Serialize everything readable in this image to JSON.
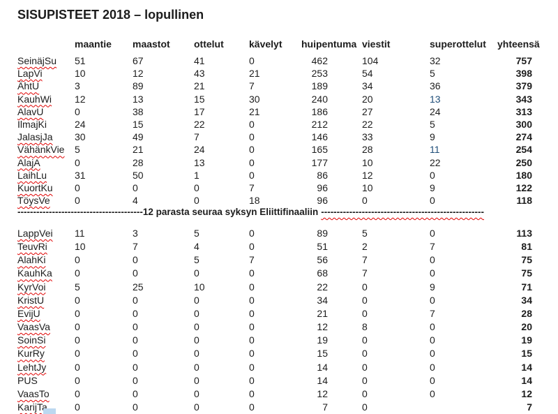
{
  "title": "SISUPISTEET 2018 – lopullinen",
  "columns": [
    "maantie",
    "maastot",
    "ottelut",
    "kävelyt",
    "huipentuma",
    "viestit",
    "superottelut",
    "yhteensä"
  ],
  "separator": {
    "left_dashes": "----------------------------------------",
    "label": "12 parasta seuraa syksyn Eliittifinaaliin",
    "right_dashes": "----------------------------------------------------"
  },
  "colors": {
    "spellcheck_red": "#e00000",
    "special_blue": "#1f4e79",
    "selection_blue": "#bcd8f0",
    "text": "#1c1c1c"
  },
  "sections": {
    "top": [
      {
        "name": "SeinäjSu",
        "misspelled": true,
        "maantie": "51",
        "maastot": "67",
        "ottelut": "41",
        "kävelyt": "0",
        "huipentuma": "462",
        "viestit": "104",
        "superottelut": "32",
        "yhteensä": "757"
      },
      {
        "name": "LapVi",
        "misspelled": true,
        "maantie": "10",
        "maastot": "12",
        "ottelut": "43",
        "kävelyt": "21",
        "huipentuma": "253",
        "viestit": "54",
        "superottelut": "5",
        "yhteensä": "398"
      },
      {
        "name": "ÄhtU",
        "misspelled": true,
        "maantie": "3",
        "maastot": "89",
        "ottelut": "21",
        "kävelyt": "7",
        "huipentuma": "189",
        "viestit": "34",
        "superottelut": "36",
        "yhteensä": "379"
      },
      {
        "name": "KauhWi",
        "misspelled": true,
        "maantie": "12",
        "maastot": "13",
        "ottelut": "15",
        "kävelyt": "30",
        "huipentuma": "240",
        "viestit": "20",
        "superottelut": "13",
        "superottelut_blue": true,
        "yhteensä": "343"
      },
      {
        "name": "AlavU",
        "misspelled": true,
        "maantie": "0",
        "maastot": "38",
        "ottelut": "17",
        "kävelyt": "21",
        "huipentuma": "186",
        "viestit": "27",
        "superottelut": "24",
        "yhteensä": "313"
      },
      {
        "name": "IlmajKi",
        "misspelled": false,
        "maantie": "24",
        "maastot": "15",
        "ottelut": "22",
        "kävelyt": "0",
        "huipentuma": "212",
        "viestit": "22",
        "superottelut": "5",
        "yhteensä": "300"
      },
      {
        "name": "JalasjJa",
        "misspelled": true,
        "maantie": "30",
        "maastot": "49",
        "ottelut": "7",
        "kävelyt": "0",
        "huipentuma": "146",
        "viestit": "33",
        "superottelut": "9",
        "yhteensä": "274"
      },
      {
        "name": "VähänkVie",
        "misspelled": true,
        "maantie": "5",
        "maastot": "21",
        "ottelut": "24",
        "kävelyt": "0",
        "huipentuma": "165",
        "viestit": "28",
        "superottelut": "11",
        "superottelut_blue": true,
        "yhteensä": "254"
      },
      {
        "name": "AlajA",
        "misspelled": true,
        "maantie": "0",
        "maastot": "28",
        "ottelut": "13",
        "kävelyt": "0",
        "huipentuma": "177",
        "viestit": "10",
        "superottelut": "22",
        "yhteensä": "250"
      },
      {
        "name": "LaihLu",
        "misspelled": true,
        "maantie": "31",
        "maastot": "50",
        "ottelut": "1",
        "kävelyt": "0",
        "huipentuma": "86",
        "viestit": "12",
        "superottelut": "0",
        "yhteensä": "180"
      },
      {
        "name": "KuortKu",
        "misspelled": true,
        "maantie": "0",
        "maastot": "0",
        "ottelut": "0",
        "kävelyt": "7",
        "huipentuma": "96",
        "viestit": "10",
        "superottelut": "9",
        "yhteensä": "122"
      },
      {
        "name": "TöysVe",
        "misspelled": true,
        "maantie": "0",
        "maastot": "4",
        "ottelut": "0",
        "kävelyt": "18",
        "huipentuma": "96",
        "viestit": "0",
        "superottelut": "0",
        "yhteensä": "118"
      }
    ],
    "bottom": [
      {
        "name": "LappVei",
        "misspelled": true,
        "maantie": "11",
        "maastot": "3",
        "ottelut": "5",
        "kävelyt": "0",
        "huipentuma": "89",
        "viestit": "5",
        "superottelut": "0",
        "yhteensä": "113"
      },
      {
        "name": "TeuvRi",
        "misspelled": true,
        "maantie": "10",
        "maastot": "7",
        "ottelut": "4",
        "kävelyt": "0",
        "huipentuma": "51",
        "viestit": "2",
        "superottelut": "7",
        "yhteensä": "81"
      },
      {
        "name": "AlahKi",
        "misspelled": true,
        "maantie": "0",
        "maastot": "0",
        "ottelut": "5",
        "kävelyt": "7",
        "huipentuma": "56",
        "viestit": "7",
        "superottelut": "0",
        "yhteensä": "75"
      },
      {
        "name": "KauhKa",
        "misspelled": true,
        "maantie": "0",
        "maastot": "0",
        "ottelut": "0",
        "kävelyt": "0",
        "huipentuma": "68",
        "viestit": "7",
        "superottelut": "0",
        "yhteensä": "75"
      },
      {
        "name": "KyrVoi",
        "misspelled": true,
        "maantie": "5",
        "maastot": "25",
        "ottelut": "10",
        "kävelyt": "0",
        "huipentuma": "22",
        "viestit": "0",
        "superottelut": "9",
        "yhteensä": "71"
      },
      {
        "name": "KristU",
        "misspelled": true,
        "maantie": "0",
        "maastot": "0",
        "ottelut": "0",
        "kävelyt": "0",
        "huipentuma": "34",
        "viestit": "0",
        "superottelut": "0",
        "yhteensä": "34"
      },
      {
        "name": "EvijU",
        "misspelled": true,
        "maantie": "0",
        "maastot": "0",
        "ottelut": "0",
        "kävelyt": "0",
        "huipentuma": "21",
        "viestit": "0",
        "superottelut": "7",
        "yhteensä": "28"
      },
      {
        "name": "VaasVa",
        "misspelled": true,
        "maantie": "0",
        "maastot": "0",
        "ottelut": "0",
        "kävelyt": "0",
        "huipentuma": "12",
        "viestit": "8",
        "superottelut": "0",
        "yhteensä": "20"
      },
      {
        "name": "SoinSi",
        "misspelled": true,
        "maantie": "0",
        "maastot": "0",
        "ottelut": "0",
        "kävelyt": "0",
        "huipentuma": "19",
        "viestit": "0",
        "superottelut": "0",
        "yhteensä": "19"
      },
      {
        "name": "KurRy",
        "misspelled": true,
        "maantie": "0",
        "maastot": "0",
        "ottelut": "0",
        "kävelyt": "0",
        "huipentuma": "15",
        "viestit": "0",
        "superottelut": "0",
        "yhteensä": "15"
      },
      {
        "name": "LehtJy",
        "misspelled": true,
        "maantie": "0",
        "maastot": "0",
        "ottelut": "0",
        "kävelyt": "0",
        "huipentuma": "14",
        "viestit": "0",
        "superottelut": "0",
        "yhteensä": "14"
      },
      {
        "name": "PUS",
        "misspelled": false,
        "maantie": "0",
        "maastot": "0",
        "ottelut": "0",
        "kävelyt": "0",
        "huipentuma": "14",
        "viestit": "0",
        "superottelut": "0",
        "yhteensä": "14"
      },
      {
        "name": "VaasTo",
        "misspelled": true,
        "maantie": "0",
        "maastot": "0",
        "ottelut": "0",
        "kävelyt": "0",
        "huipentuma": "12",
        "viestit": "0",
        "superottelut": "0",
        "yhteensä": "12"
      },
      {
        "name": "KarijTa",
        "misspelled": true,
        "maantie": "0",
        "maastot": "0",
        "ottelut": "0",
        "kävelyt": "0",
        "huipentuma": "7",
        "viestit": "0",
        "superottelut": "",
        "yhteensä": "7"
      }
    ]
  }
}
